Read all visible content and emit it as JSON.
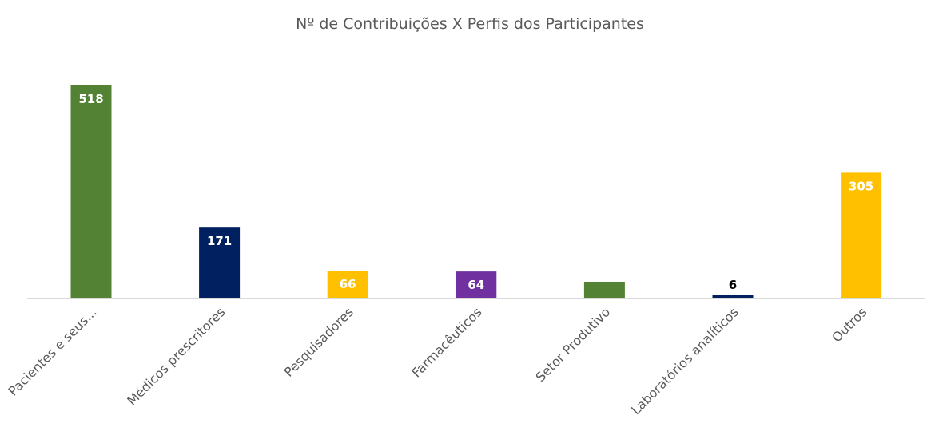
{
  "chart_data": {
    "type": "bar",
    "title": "Nº de Contribuições X Perfis dos Participantes",
    "xlabel": "",
    "ylabel": "",
    "ylim": [
      0,
      518
    ],
    "grid": false,
    "legend": "none",
    "categories": [
      "Pacientes e seus...",
      "Médicos prescritores",
      "Pesquisadores",
      "Farmacêuticos",
      "Setor Produtivo",
      "Laboratórios analíticos",
      "Outros"
    ],
    "values": [
      518,
      171,
      66,
      64,
      39,
      6,
      305
    ],
    "colors": [
      "#548235",
      "#002060",
      "#FFC000",
      "#7030A0",
      "#548235",
      "#002060",
      "#FFC000"
    ],
    "label_colors": [
      "#ffffff",
      "#ffffff",
      "#ffffff",
      "#ffffff",
      "#ffffff",
      "#000000",
      "#ffffff"
    ]
  }
}
